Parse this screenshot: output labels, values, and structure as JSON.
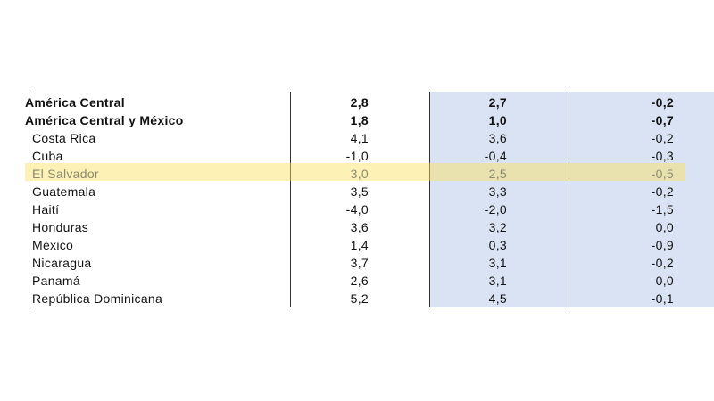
{
  "table": {
    "rows": [
      {
        "name": "América Central",
        "values": [
          "2,8",
          "2,7",
          "-0,2"
        ],
        "bold": true
      },
      {
        "name": "América Central y México",
        "values": [
          "1,8",
          "1,0",
          "-0,7"
        ],
        "bold": true
      },
      {
        "name": "Costa Rica",
        "values": [
          "4,1",
          "3,6",
          "-0,2"
        ]
      },
      {
        "name": "Cuba",
        "values": [
          "-1,0",
          "-0,4",
          "-0,3"
        ]
      },
      {
        "name": "El Salvador",
        "values": [
          "3,0",
          "2,5",
          "-0,5"
        ],
        "highlight": true
      },
      {
        "name": "Guatemala",
        "values": [
          "3,5",
          "3,3",
          "-0,2"
        ]
      },
      {
        "name": "Haití",
        "values": [
          "-4,0",
          "-2,0",
          "-1,5"
        ]
      },
      {
        "name": "Honduras",
        "values": [
          "3,6",
          "3,2",
          "0,0"
        ]
      },
      {
        "name": "México",
        "values": [
          "1,4",
          "0,3",
          "-0,9"
        ]
      },
      {
        "name": "Nicaragua",
        "values": [
          "3,7",
          "3,1",
          "-0,2"
        ]
      },
      {
        "name": "Panamá",
        "values": [
          "2,6",
          "3,1",
          "0,0"
        ]
      },
      {
        "name": "República Dominicana",
        "values": [
          "5,2",
          "4,5",
          "-0,1"
        ]
      }
    ]
  }
}
